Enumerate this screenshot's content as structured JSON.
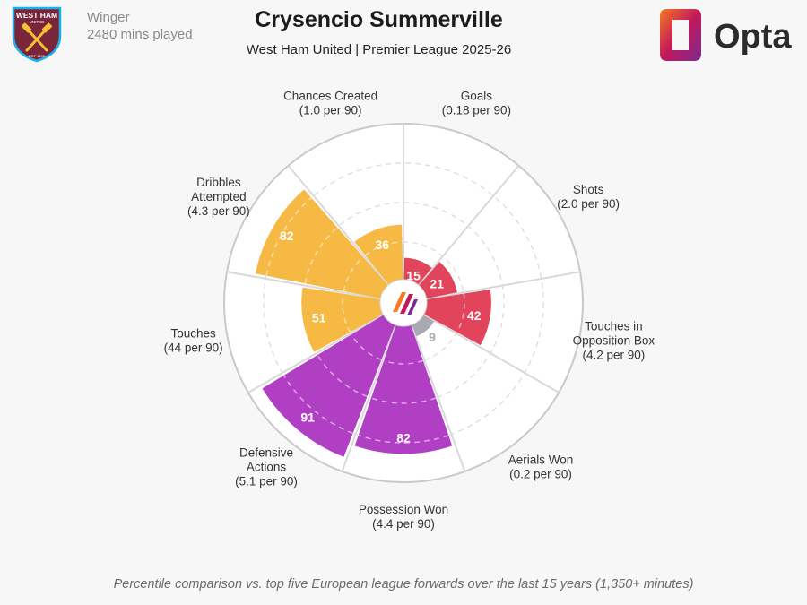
{
  "header": {
    "position": "Winger",
    "minutes": "2480 mins played",
    "player_name": "Crysencio Summerville",
    "team_league": "West Ham United | Premier League 2025-26",
    "crest_text_top": "WEST HAM",
    "crest_text_sub": "UNITED",
    "crest_text_bottom": "EST 1895",
    "brand": "Opta"
  },
  "footnote": "Percentile comparison vs. top five European league forwards over the last 15 years (1,350+ minutes)",
  "colors": {
    "attacking": "#e2445c",
    "possession": "#f5b944",
    "defending": "#b13fc4",
    "low_value": "#a9a9b3",
    "grid": "#d9d9dc",
    "outer_ring": "#c9c9cc",
    "opta_orange": "#f47b20",
    "opta_magenta": "#c2185b",
    "opta_purple": "#7b2a8f"
  },
  "chart_data": {
    "type": "polar-bar",
    "max": 100,
    "segments": [
      {
        "metric": "Goals",
        "detail": "(0.18 per 90)",
        "percentile": 15,
        "group": "attacking"
      },
      {
        "metric": "Shots",
        "detail": "(2.0 per 90)",
        "percentile": 21,
        "group": "attacking"
      },
      {
        "metric": "Touches in Opposition Box",
        "detail": "(4.2 per 90)",
        "percentile": 42,
        "group": "attacking"
      },
      {
        "metric": "Aerials Won",
        "detail": "(0.2 per 90)",
        "percentile": 9,
        "group": "defending"
      },
      {
        "metric": "Possession Won",
        "detail": "(4.4 per 90)",
        "percentile": 82,
        "group": "defending"
      },
      {
        "metric": "Defensive Actions",
        "detail": "(5.1 per 90)",
        "percentile": 91,
        "group": "defending"
      },
      {
        "metric": "Touches",
        "detail": "(44 per 90)",
        "percentile": 51,
        "group": "possession"
      },
      {
        "metric": "Dribbles Attempted",
        "detail": "(4.3 per 90)",
        "percentile": 82,
        "group": "possession"
      },
      {
        "metric": "Chances Created",
        "detail": "(1.0 per 90)",
        "percentile": 36,
        "group": "possession"
      }
    ]
  }
}
